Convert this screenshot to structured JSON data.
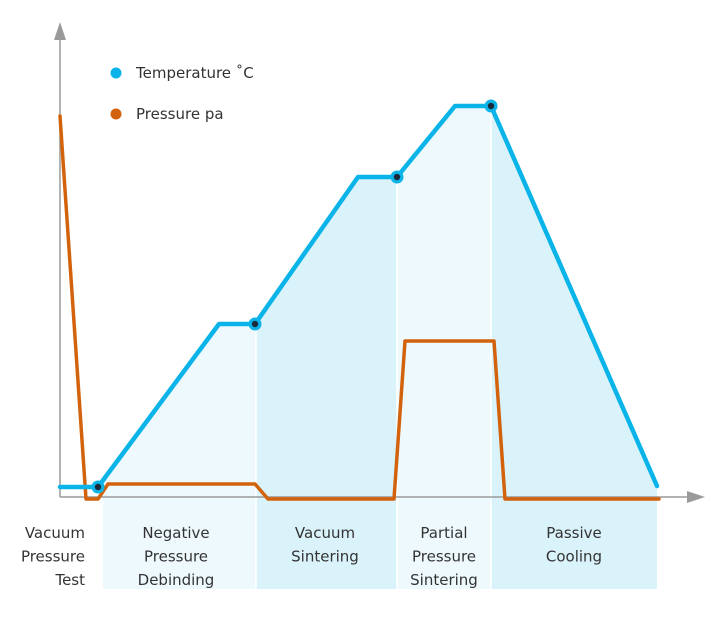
{
  "chart_data": {
    "type": "line",
    "title": "",
    "xlabel": "",
    "ylabel": "",
    "grid": false,
    "legend_position": "top-left",
    "phases": [
      {
        "key": "vacuum-pressure-test",
        "lines": [
          "Vacuum",
          "Pressure",
          "Test"
        ],
        "align": "right"
      },
      {
        "key": "negative-pressure-debinding",
        "lines": [
          "Negative",
          "Pressure",
          "Debinding"
        ],
        "align": "center"
      },
      {
        "key": "vacuum-sintering",
        "lines": [
          "Vacuum",
          "Sintering"
        ],
        "align": "center"
      },
      {
        "key": "partial-pressure-sintering",
        "lines": [
          "Partial",
          "Pressure",
          "Sintering"
        ],
        "align": "center"
      },
      {
        "key": "passive-cooling",
        "lines": [
          "Passive",
          "Cooling"
        ],
        "align": "center"
      }
    ],
    "series": [
      {
        "name": "Temperature ˚C",
        "key": "temperature",
        "color": "#0BB4E8",
        "marker": "circle",
        "shaded": true
      },
      {
        "name": "Pressure pa",
        "key": "pressure",
        "color": "#D2630C",
        "marker": "circle",
        "shaded": false
      }
    ]
  },
  "colors": {
    "axis": "#9a9a9a",
    "shade_light": "#EEF9FD",
    "shade_dark": "#DAF2FA",
    "divider": "#ffffff",
    "marker_center": "#1a2a3a"
  }
}
